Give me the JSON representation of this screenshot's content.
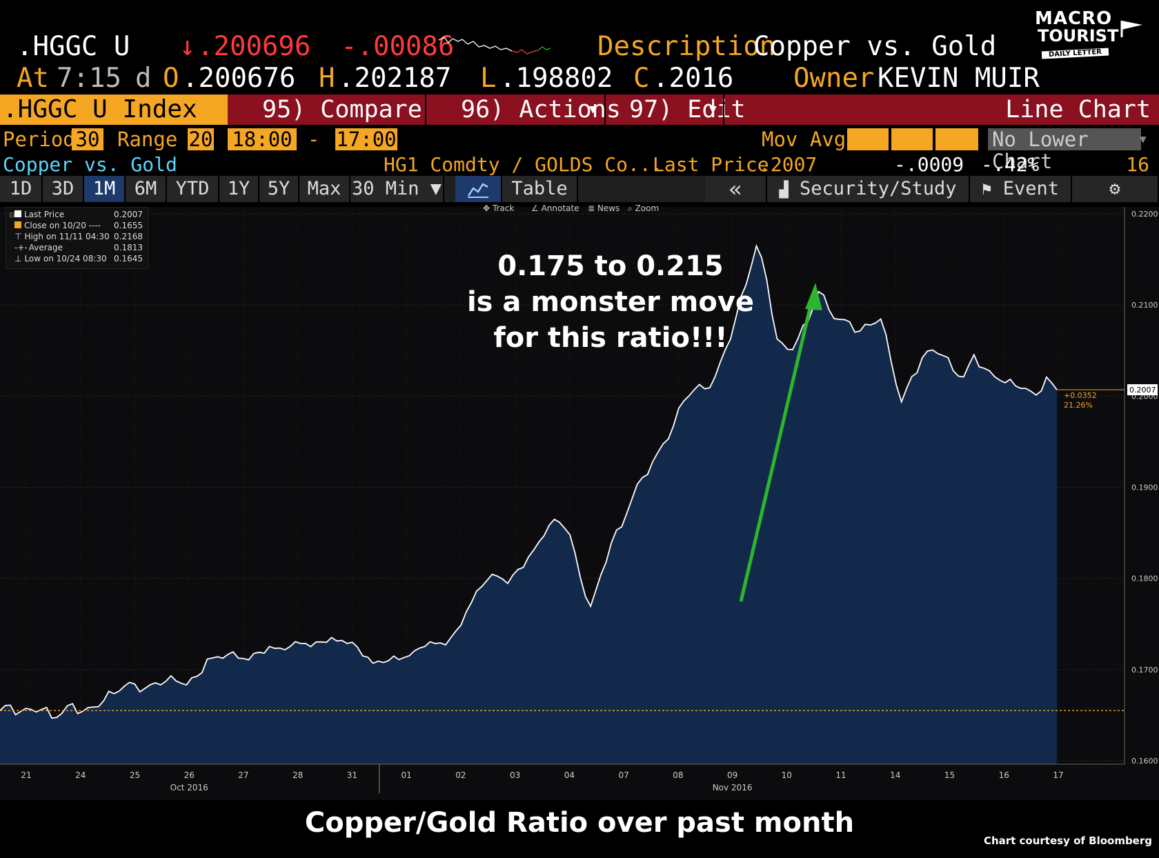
{
  "header": {
    "ticker": ".HGGC U",
    "last_arrow": "↓",
    "last": ".200696",
    "change": "-.00086",
    "desc_label": "Description",
    "description": "Copper vs. Gold",
    "at_label": "At",
    "time": "7:15",
    "d_label": "d",
    "o_label": "O",
    "open": ".200676",
    "h_label": "H",
    "high": ".202187",
    "l_label": "L",
    "low": ".198802",
    "c_label": "C",
    "close": ".2016",
    "owner_label": "Owner",
    "owner": "KEVIN MUIR"
  },
  "logo": {
    "line1": "MACRO",
    "line2": "TOURIST",
    "line3": "DAILY LETTER"
  },
  "bar": {
    "ticker_label": ".HGGC U Index",
    "compare": "95) Compare",
    "actions": "96) Actions",
    "edit": "97) Edit",
    "chart_type": "Line Chart"
  },
  "period": {
    "period_label": "Period",
    "period_value": "30",
    "range_label": "Range",
    "range_value": "20",
    "start_time": "18:00",
    "dash": "-",
    "end_time": "17:00",
    "mov_avg_label": "Mov Avg",
    "lower_chart": "No Lower Chart"
  },
  "info": {
    "name": "Copper vs. Gold",
    "formula": "HG1 Comdty / GOLDS Co...",
    "last_price_label": "Last Price",
    "last_price": ".2007",
    "net_change": "-.0009",
    "pct_change": "-.42%",
    "count": "16"
  },
  "tabs": {
    "items": [
      "1D",
      "3D",
      "1M",
      "6M",
      "YTD",
      "1Y",
      "5Y",
      "Max",
      "30 Min ▼"
    ],
    "selected": "1M",
    "table": "Table",
    "back": "«",
    "security_study": "Security/Study",
    "event": "Event"
  },
  "toolbar": {
    "track": "Track",
    "annotate": "Annotate",
    "news": "News",
    "zoom": "Zoom"
  },
  "legend": {
    "items": [
      {
        "label": "Last Price",
        "value": "0.2007"
      },
      {
        "label": "Close on 10/20 ----",
        "value": "0.1655"
      },
      {
        "label": "High on 11/11 04:30",
        "value": "0.2168"
      },
      {
        "label": "Average",
        "value": "0.1813"
      },
      {
        "label": "Low on 10/24 08:30",
        "value": "0.1645"
      }
    ]
  },
  "annotation": {
    "line1": "0.175 to 0.215",
    "line2": "is a monster move",
    "line3": "for this ratio!!!"
  },
  "caption": "Copper/Gold Ratio over past month",
  "credit": "Chart courtesy of Bloomberg",
  "colors": {
    "accent": "#f5a623",
    "bar": "#8b1020",
    "area": "#13294b",
    "arrow": "#2db52d",
    "tab_selected": "#1d3a6b"
  },
  "chart_data": {
    "type": "area",
    "ylim": [
      0.16,
      0.22
    ],
    "yticks": [
      "0.2200",
      "0.2100",
      "0.2000",
      "0.1900",
      "0.1800",
      "0.1700",
      "0.1600"
    ],
    "ytick_values": [
      0.22,
      0.21,
      0.2,
      0.19,
      0.18,
      0.17,
      0.16
    ],
    "x_labels": [
      "21",
      "24",
      "25",
      "26",
      "27",
      "28",
      "31",
      "01",
      "02",
      "03",
      "04",
      "07",
      "08",
      "09",
      "10",
      "11",
      "14",
      "15",
      "16",
      "17"
    ],
    "month_labels": [
      {
        "label": "Oct 2016",
        "at": "26"
      },
      {
        "label": "Nov 2016",
        "at": "09"
      }
    ],
    "reference_line": {
      "label": "Close on 10/20",
      "value": 0.1655
    },
    "last_label": {
      "value": "0.2007",
      "change": "+0.0352",
      "pct": "21.26%"
    },
    "series": [
      {
        "values": [
          0.1655,
          0.1658,
          0.1651,
          0.1656,
          0.1659,
          0.165,
          0.1653,
          0.166,
          0.1651,
          0.1658,
          0.1668,
          0.1677,
          0.1683,
          0.1682,
          0.1676,
          0.1684,
          0.1689,
          0.1691,
          0.1685,
          0.1691,
          0.1708,
          0.1712,
          0.1718,
          0.1716,
          0.1713,
          0.1718,
          0.1722,
          0.1721,
          0.1726,
          0.1732,
          0.1728,
          0.173,
          0.1732,
          0.1729,
          0.173,
          0.1718,
          0.171,
          0.1708,
          0.1712,
          0.171,
          0.172,
          0.1728,
          0.1732,
          0.1728,
          0.174,
          0.176,
          0.1785,
          0.18,
          0.1806,
          0.1796,
          0.1808,
          0.182,
          0.1838,
          0.186,
          0.1865,
          0.185,
          0.18,
          0.1766,
          0.1802,
          0.184,
          0.186,
          0.189,
          0.191,
          0.1925,
          0.1945,
          0.1968,
          0.1998,
          0.201,
          0.2008,
          0.2018,
          0.2048,
          0.2085,
          0.2125,
          0.2168,
          0.2128,
          0.206,
          0.2048,
          0.2062,
          0.2085,
          0.2118,
          0.2096,
          0.2082,
          0.2078,
          0.207,
          0.208,
          0.2088,
          0.204,
          0.1992,
          0.2018,
          0.204,
          0.2052,
          0.2048,
          0.203,
          0.202,
          0.2042,
          0.2028,
          0.2022,
          0.2018,
          0.2014,
          0.2008,
          0.1998,
          0.2018,
          0.2007
        ]
      }
    ]
  }
}
